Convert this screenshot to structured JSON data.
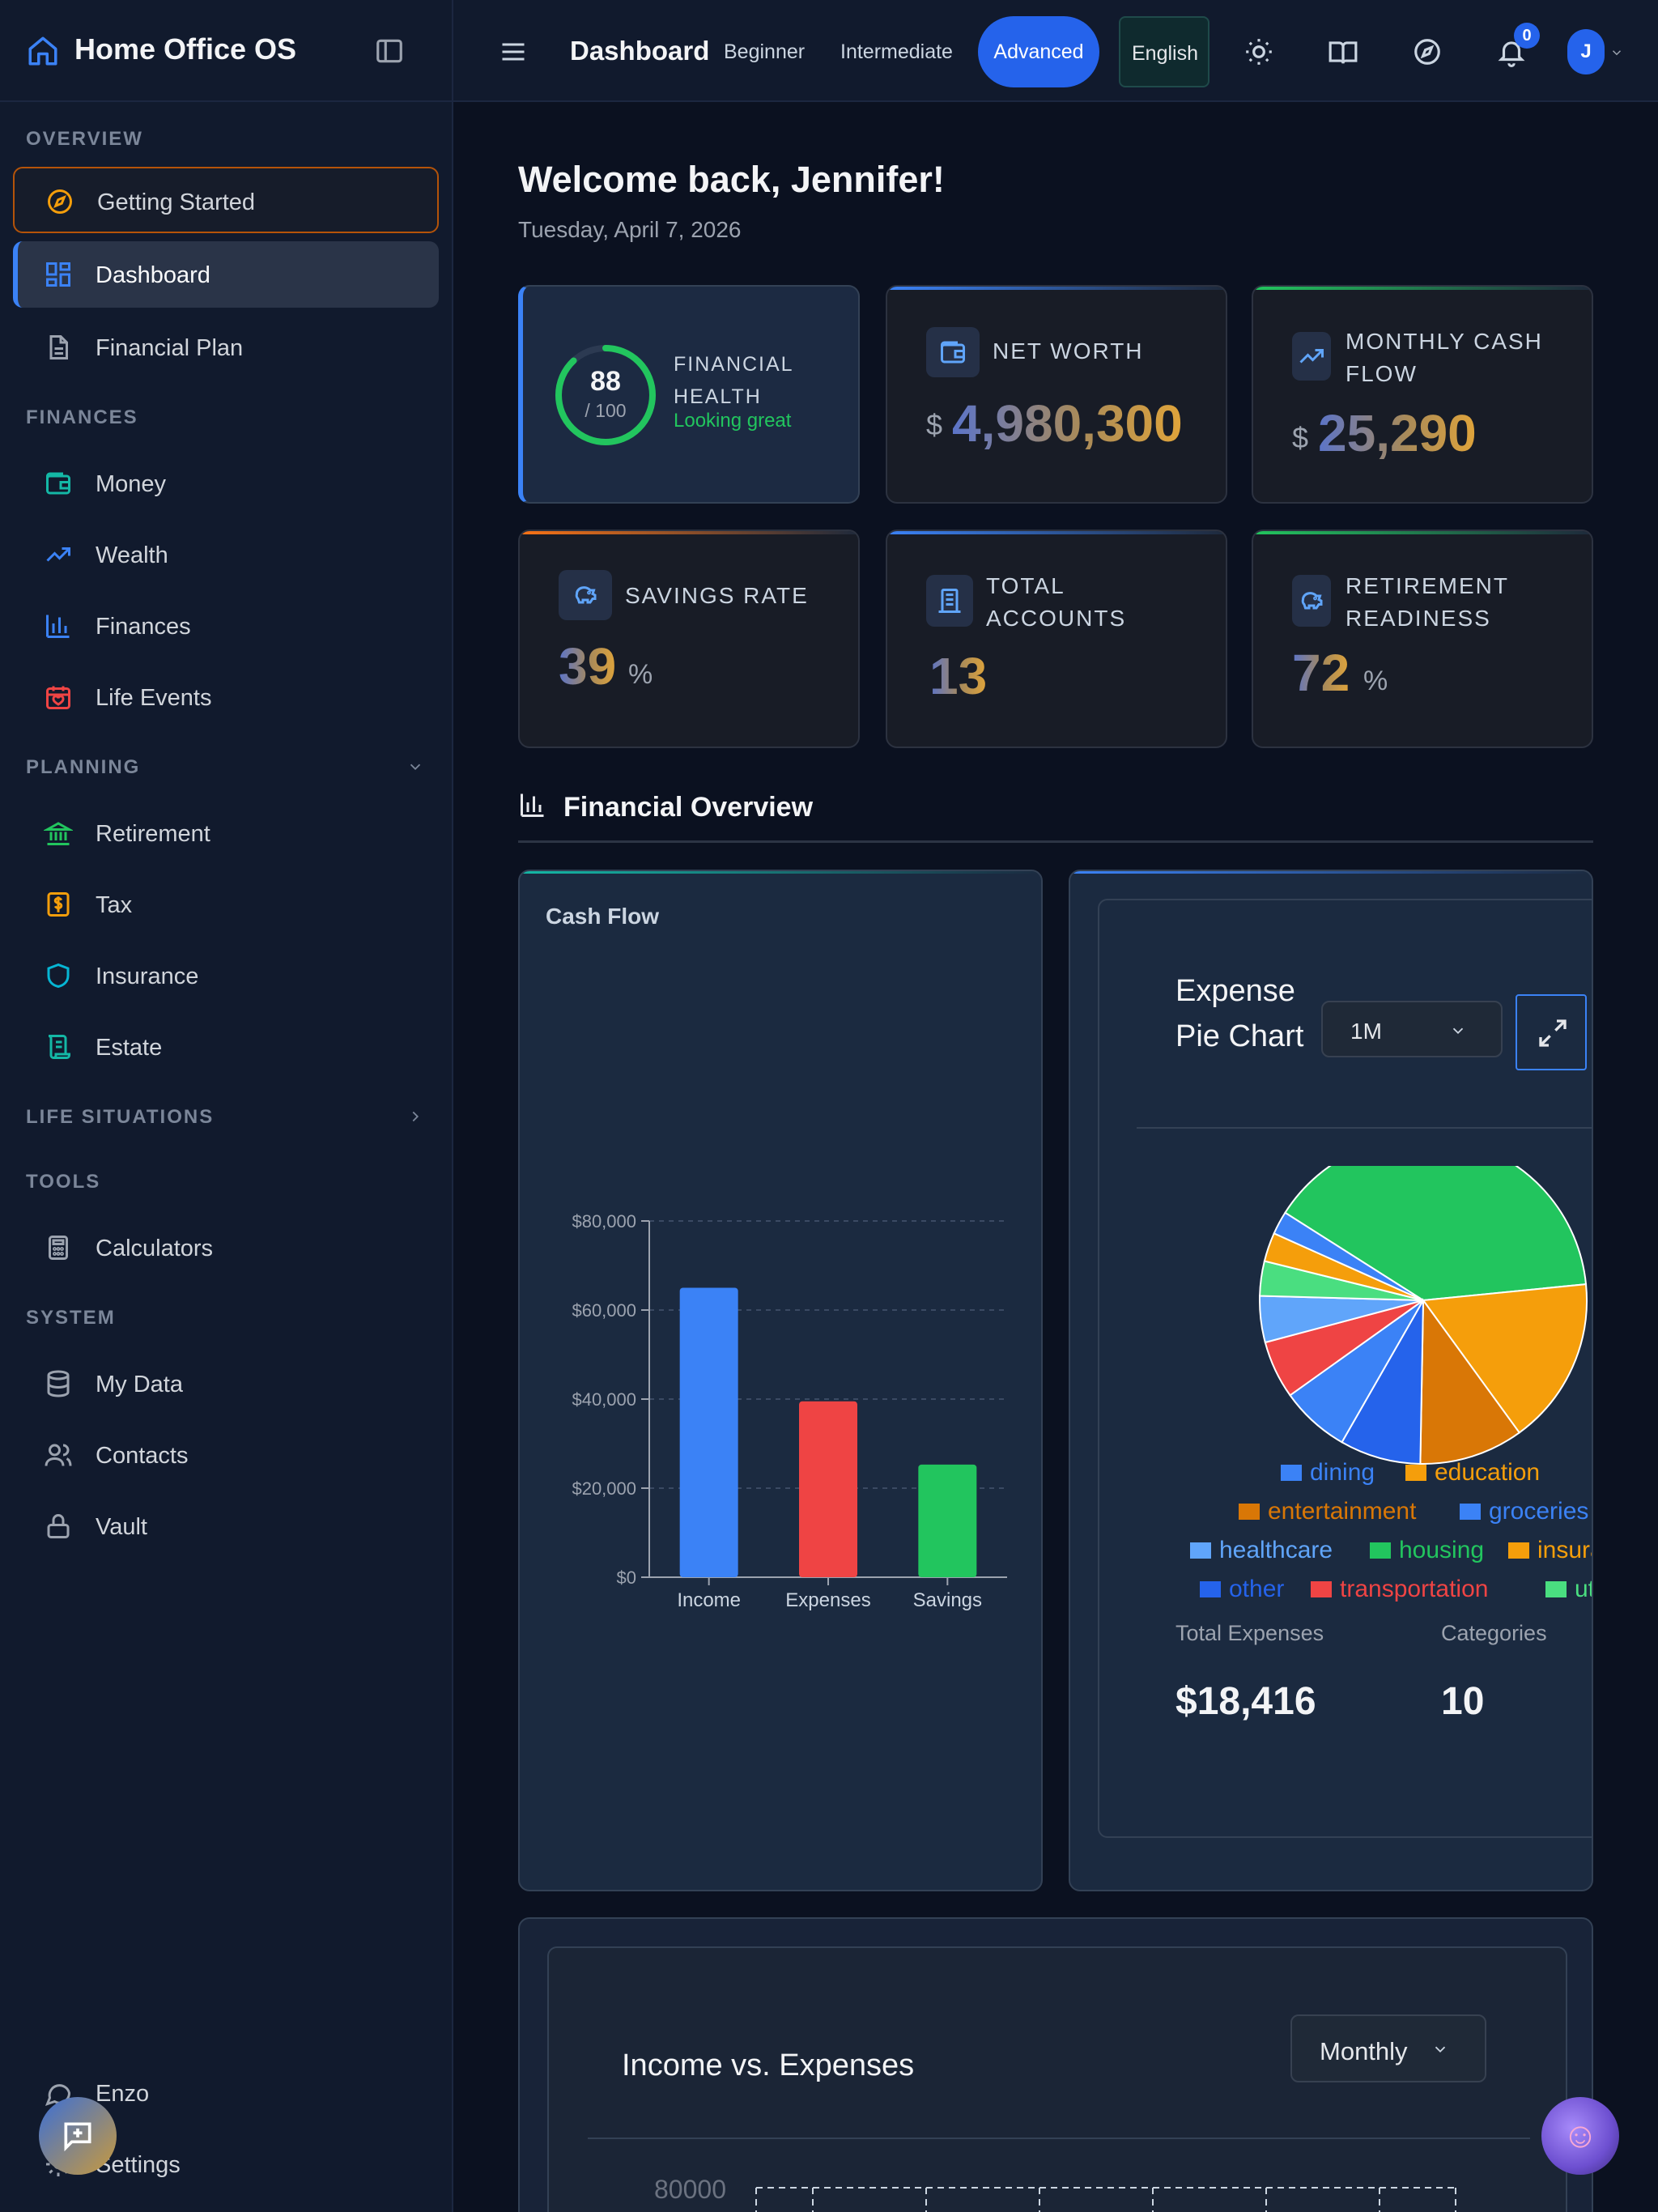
{
  "app": {
    "title": "Home Office OS"
  },
  "sidebar": {
    "sections": {
      "overview": "OVERVIEW",
      "finances": "FINANCES",
      "planning": "PLANNING",
      "life": "LIFE SITUATIONS",
      "tools": "TOOLS",
      "system": "SYSTEM"
    },
    "items": {
      "getting_started": "Getting Started",
      "dashboard": "Dashboard",
      "financial_plan": "Financial Plan",
      "money": "Money",
      "wealth": "Wealth",
      "finances": "Finances",
      "life_events": "Life Events",
      "retirement": "Retirement",
      "tax": "Tax",
      "insurance": "Insurance",
      "estate": "Estate",
      "calculators": "Calculators",
      "my_data": "My Data",
      "contacts": "Contacts",
      "vault": "Vault",
      "enzo": "Enzo",
      "settings": "Settings"
    }
  },
  "topbar": {
    "page": "Dashboard",
    "levels": {
      "beginner": "Beginner",
      "intermediate": "Intermediate",
      "advanced": "Advanced"
    },
    "language": "English",
    "notifications": "0",
    "avatar": "J"
  },
  "main": {
    "welcome": "Welcome back, Jennifer!",
    "date": "Tuesday, April 7, 2026",
    "cards": {
      "health": {
        "score": "88",
        "of": "/ 100",
        "fraction": 0.88,
        "label": "FINANCIAL HEALTH",
        "status": "Looking great"
      },
      "net_worth": {
        "label": "NET WORTH",
        "currency": "$",
        "value": "4,980,300"
      },
      "cash_flow": {
        "label": "MONTHLY CASH FLOW",
        "currency": "$",
        "value": "25,290"
      },
      "savings": {
        "label": "SAVINGS RATE",
        "value": "39",
        "unit": "%"
      },
      "accounts": {
        "label": "TOTAL ACCOUNTS",
        "value": "13"
      },
      "retirement": {
        "label": "RETIREMENT READINESS",
        "value": "72",
        "unit": "%"
      }
    },
    "overview_title": "Financial Overview",
    "cash_flow_title": "Cash Flow",
    "pie": {
      "title": "Expense Pie Chart",
      "period": "1M",
      "total_label": "Total Expenses",
      "total_value": "$18,416",
      "cat_label": "Categories",
      "cat_value": "10"
    },
    "iv": {
      "title": "Income vs. Expenses",
      "period": "Monthly",
      "tick": "80000"
    }
  },
  "colors": {
    "accent": "#2563eb",
    "green": "#22c55e",
    "red": "#ef4444",
    "orange": "#f59e0b"
  },
  "chart_data": [
    {
      "type": "bar",
      "title": "Cash Flow",
      "categories": [
        "Income",
        "Expenses",
        "Savings"
      ],
      "values": [
        65000,
        39500,
        25300
      ],
      "colors": [
        "#3b82f6",
        "#ef4444",
        "#22c55e"
      ],
      "ylim": [
        0,
        80000
      ],
      "ticks": [
        "$0",
        "$20,000",
        "$40,000",
        "$60,000",
        "$80,000"
      ]
    },
    {
      "type": "pie",
      "title": "Expense Pie Chart",
      "slices": [
        {
          "name": "housing",
          "value": 34.5,
          "color": "#22c55e"
        },
        {
          "name": "insurance",
          "value": 14.5,
          "color": "#f59e0b"
        },
        {
          "name": "entertainment",
          "value": 9.0,
          "color": "#d97706"
        },
        {
          "name": "other",
          "value": 7.0,
          "color": "#2563eb"
        },
        {
          "name": "groceries",
          "value": 6.0,
          "color": "#3b82f6"
        },
        {
          "name": "transportation",
          "value": 5.0,
          "color": "#ef4444"
        },
        {
          "name": "healthcare",
          "value": 4.0,
          "color": "#60a5fa"
        },
        {
          "name": "utilities",
          "value": 3.0,
          "color": "#4ade80"
        },
        {
          "name": "education",
          "value": 2.5,
          "color": "#f59e0b"
        },
        {
          "name": "dining",
          "value": 2.0,
          "color": "#3b82f6"
        }
      ],
      "legend": [
        "dining",
        "education",
        "entertainment",
        "groceries",
        "healthcare",
        "housing",
        "insura",
        "other",
        "transportation",
        "utili"
      ]
    }
  ]
}
